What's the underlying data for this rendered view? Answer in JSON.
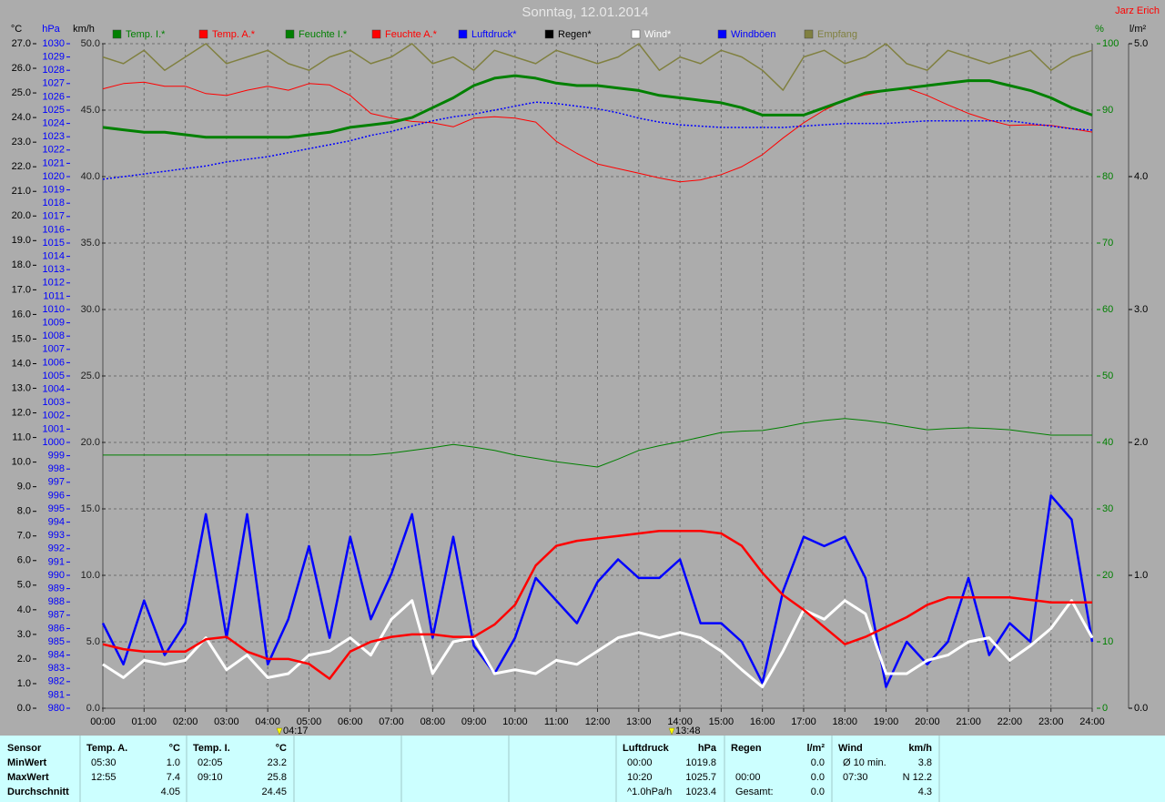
{
  "chart_data": {
    "type": "line",
    "title": "Sonntag, 12.01.2014",
    "author": "Jarz Erich",
    "axis_units": {
      "y": "°C",
      "y2": "hPa",
      "y3": "km/h",
      "y4": "%",
      "y5": "l/m²"
    },
    "xlim": [
      0,
      24
    ],
    "xticks": [
      {
        "value": 0,
        "label": "00:00"
      },
      {
        "value": 1,
        "label": "01:00"
      },
      {
        "value": 2,
        "label": "02:00"
      },
      {
        "value": 3,
        "label": "03:00"
      },
      {
        "value": 4,
        "label": "04:00"
      },
      {
        "value": 5,
        "label": "05:00"
      },
      {
        "value": 6,
        "label": "06:00"
      },
      {
        "value": 7,
        "label": "07:00"
      },
      {
        "value": 8,
        "label": "08:00"
      },
      {
        "value": 9,
        "label": "09:00"
      },
      {
        "value": 10,
        "label": "10:00"
      },
      {
        "value": 11,
        "label": "11:00"
      },
      {
        "value": 12,
        "label": "12:00"
      },
      {
        "value": 13,
        "label": "13:00"
      },
      {
        "value": 14,
        "label": "14:00"
      },
      {
        "value": 15,
        "label": "15:00"
      },
      {
        "value": 16,
        "label": "16:00"
      },
      {
        "value": 17,
        "label": "17:00"
      },
      {
        "value": 18,
        "label": "18:00"
      },
      {
        "value": 19,
        "label": "19:00"
      },
      {
        "value": 20,
        "label": "20:00"
      },
      {
        "value": 21,
        "label": "21:00"
      },
      {
        "value": 22,
        "label": "22:00"
      },
      {
        "value": 23,
        "label": "23:00"
      },
      {
        "value": 24,
        "label": "24:00"
      }
    ],
    "ylim": [
      0,
      27
    ],
    "yticks": [
      {
        "value": 0,
        "label": "0.0"
      },
      {
        "value": 1,
        "label": "1.0"
      },
      {
        "value": 2,
        "label": "2.0"
      },
      {
        "value": 3,
        "label": "3.0"
      },
      {
        "value": 4,
        "label": "4.0"
      },
      {
        "value": 5,
        "label": "5.0"
      },
      {
        "value": 6,
        "label": "6.0"
      },
      {
        "value": 7,
        "label": "7.0"
      },
      {
        "value": 8,
        "label": "8.0"
      },
      {
        "value": 9,
        "label": "9.0"
      },
      {
        "value": 10,
        "label": "10.0"
      },
      {
        "value": 11,
        "label": "11.0"
      },
      {
        "value": 12,
        "label": "12.0"
      },
      {
        "value": 13,
        "label": "13.0"
      },
      {
        "value": 14,
        "label": "14.0"
      },
      {
        "value": 15,
        "label": "15.0"
      },
      {
        "value": 16,
        "label": "16.0"
      },
      {
        "value": 17,
        "label": "17.0"
      },
      {
        "value": 18,
        "label": "18.0"
      },
      {
        "value": 19,
        "label": "19.0"
      },
      {
        "value": 20,
        "label": "20.0"
      },
      {
        "value": 21,
        "label": "21.0"
      },
      {
        "value": 22,
        "label": "22.0"
      },
      {
        "value": 23,
        "label": "23.0"
      },
      {
        "value": 24,
        "label": "24.0"
      },
      {
        "value": 25,
        "label": "25.0"
      },
      {
        "value": 26,
        "label": "26.0"
      },
      {
        "value": 27,
        "label": "27.0"
      }
    ],
    "y2lim": [
      980,
      1030
    ],
    "y2ticks": [
      980,
      981,
      982,
      983,
      984,
      985,
      986,
      987,
      988,
      989,
      990,
      991,
      992,
      993,
      994,
      995,
      996,
      997,
      998,
      999,
      1000,
      1001,
      1002,
      1003,
      1004,
      1005,
      1006,
      1007,
      1008,
      1009,
      1010,
      1011,
      1012,
      1013,
      1014,
      1015,
      1016,
      1017,
      1018,
      1019,
      1020,
      1021,
      1022,
      1023,
      1024,
      1025,
      1026,
      1027,
      1028,
      1029,
      1030
    ],
    "y3lim": [
      0,
      50
    ],
    "y3ticks": [
      {
        "value": 0,
        "label": "0.0"
      },
      {
        "value": 5,
        "label": "5.0"
      },
      {
        "value": 10,
        "label": "10.0"
      },
      {
        "value": 15,
        "label": "15.0"
      },
      {
        "value": 20,
        "label": "20.0"
      },
      {
        "value": 25,
        "label": "25.0"
      },
      {
        "value": 30,
        "label": "30.0"
      },
      {
        "value": 35,
        "label": "35.0"
      },
      {
        "value": 40,
        "label": "40.0"
      },
      {
        "value": 45,
        "label": "45.0"
      },
      {
        "value": 50,
        "label": "50.0"
      }
    ],
    "y4lim": [
      0,
      100
    ],
    "y4ticks": [
      0,
      10,
      20,
      30,
      40,
      50,
      60,
      70,
      80,
      90,
      100
    ],
    "y5lim": [
      0,
      5
    ],
    "y5ticks": [
      {
        "value": 0,
        "label": "0.0"
      },
      {
        "value": 1,
        "label": "1.0"
      },
      {
        "value": 2,
        "label": "2.0"
      },
      {
        "value": 3,
        "label": "3.0"
      },
      {
        "value": 4,
        "label": "4.0"
      },
      {
        "value": 5,
        "label": "5.0"
      }
    ],
    "grid": true,
    "x": [
      0,
      0.5,
      1,
      1.5,
      2,
      2.5,
      3,
      3.5,
      4,
      4.5,
      5,
      5.5,
      6,
      6.5,
      7,
      7.5,
      8,
      8.5,
      9,
      9.5,
      10,
      10.5,
      11,
      11.5,
      12,
      12.5,
      13,
      13.5,
      14,
      14.5,
      15,
      15.5,
      16,
      16.5,
      17,
      17.5,
      18,
      18.5,
      19,
      19.5,
      20,
      20.5,
      21,
      21.5,
      22,
      22.5,
      23,
      23.5,
      24
    ],
    "series": [
      {
        "name": "Temp. I.*",
        "color": "#008000",
        "axis": "y",
        "values": [
          23.6,
          23.5,
          23.4,
          23.4,
          23.3,
          23.2,
          23.2,
          23.2,
          23.2,
          23.2,
          23.3,
          23.4,
          23.6,
          23.7,
          23.8,
          24.0,
          24.4,
          24.8,
          25.3,
          25.6,
          25.7,
          25.6,
          25.4,
          25.3,
          25.3,
          25.2,
          25.1,
          24.9,
          24.8,
          24.7,
          24.6,
          24.4,
          24.1,
          24.1,
          24.1,
          24.4,
          24.7,
          25.0,
          25.1,
          25.2,
          25.3,
          25.4,
          25.5,
          25.5,
          25.3,
          25.1,
          24.8,
          24.4,
          24.1
        ]
      },
      {
        "name": "Temp. A.*",
        "color": "#ff0000",
        "axis": "y",
        "values": [
          2.6,
          2.4,
          2.3,
          2.3,
          2.3,
          2.8,
          2.9,
          2.3,
          2.0,
          2.0,
          1.8,
          1.2,
          2.3,
          2.7,
          2.9,
          3.0,
          3.0,
          2.9,
          2.9,
          3.4,
          4.2,
          5.8,
          6.6,
          6.8,
          6.9,
          7.0,
          7.1,
          7.2,
          7.2,
          7.2,
          7.1,
          6.6,
          5.5,
          4.6,
          4.0,
          3.3,
          2.6,
          2.9,
          3.3,
          3.7,
          4.2,
          4.5,
          4.5,
          4.5,
          4.5,
          4.4,
          4.3,
          4.3,
          4.3
        ]
      },
      {
        "name": "Feuchte I.*",
        "color": "#008000",
        "axis": "y4",
        "values": [
          38.1,
          38.1,
          38.1,
          38.1,
          38.1,
          38.1,
          38.1,
          38.1,
          38.1,
          38.1,
          38.1,
          38.1,
          38.1,
          38.1,
          38.4,
          38.8,
          39.2,
          39.7,
          39.3,
          38.8,
          38.1,
          37.6,
          37.1,
          36.7,
          36.3,
          37.5,
          38.8,
          39.5,
          40.1,
          40.8,
          41.5,
          41.7,
          41.8,
          42.3,
          42.9,
          43.3,
          43.6,
          43.3,
          42.9,
          42.4,
          41.9,
          42.1,
          42.2,
          42.1,
          41.9,
          41.5,
          41.1,
          41.1,
          41.1
        ]
      },
      {
        "name": "Feuchte A.*",
        "color": "#ff0000",
        "axis": "y4",
        "values": [
          93.2,
          94.0,
          94.2,
          93.6,
          93.6,
          92.5,
          92.2,
          93.0,
          93.6,
          93.0,
          94.0,
          93.8,
          92.2,
          89.5,
          88.8,
          88.3,
          88.1,
          87.5,
          88.8,
          89.0,
          88.8,
          88.2,
          85.3,
          83.5,
          81.9,
          81.2,
          80.5,
          79.8,
          79.2,
          79.5,
          80.3,
          81.5,
          83.3,
          85.8,
          88.1,
          90.0,
          91.5,
          92.3,
          92.9,
          93.3,
          92.2,
          90.8,
          89.5,
          88.5,
          87.7,
          87.8,
          87.7,
          87.2,
          86.7
        ]
      },
      {
        "name": "Luftdruck*",
        "color": "#0000ff",
        "axis": "y2",
        "values": [
          1019.8,
          1020.0,
          1020.2,
          1020.4,
          1020.6,
          1020.8,
          1021.1,
          1021.3,
          1021.5,
          1021.8,
          1022.1,
          1022.4,
          1022.7,
          1023.1,
          1023.4,
          1023.8,
          1024.2,
          1024.5,
          1024.7,
          1025.0,
          1025.3,
          1025.6,
          1025.5,
          1025.3,
          1025.1,
          1024.8,
          1024.4,
          1024.1,
          1023.9,
          1023.8,
          1023.7,
          1023.7,
          1023.7,
          1023.7,
          1023.8,
          1023.9,
          1024.0,
          1024.0,
          1024.0,
          1024.1,
          1024.2,
          1024.2,
          1024.2,
          1024.2,
          1024.2,
          1024.0,
          1023.8,
          1023.6,
          1023.5
        ]
      },
      {
        "name": "Regen*",
        "color": "#000000",
        "axis": "y5"
      },
      {
        "name": "Wind*",
        "color": "#ffffff",
        "axis": "y3",
        "values": [
          3.3,
          2.3,
          3.6,
          3.3,
          3.6,
          5.3,
          2.9,
          4.0,
          2.3,
          2.6,
          4.0,
          4.3,
          5.3,
          4.0,
          6.7,
          8.1,
          2.6,
          5.0,
          5.3,
          2.6,
          2.9,
          2.6,
          3.6,
          3.3,
          4.3,
          5.3,
          5.7,
          5.3,
          5.7,
          5.3,
          4.3,
          2.9,
          1.6,
          4.3,
          7.4,
          6.7,
          8.1,
          7.1,
          2.6,
          2.6,
          3.6,
          4.0,
          5.0,
          5.3,
          3.6,
          4.7,
          6.0,
          8.1,
          5.3
        ]
      },
      {
        "name": "Windböen",
        "color": "#0000ff",
        "axis": "y3",
        "values": [
          6.4,
          3.3,
          8.1,
          4.0,
          6.4,
          14.6,
          5.3,
          14.6,
          3.3,
          6.7,
          12.2,
          5.3,
          12.9,
          6.7,
          10.1,
          14.6,
          5.3,
          12.9,
          4.7,
          2.6,
          5.3,
          9.8,
          8.1,
          6.4,
          9.5,
          11.2,
          9.8,
          9.8,
          11.2,
          6.4,
          6.4,
          5.0,
          1.9,
          8.8,
          12.9,
          12.2,
          12.9,
          9.8,
          1.6,
          5.0,
          3.3,
          5.0,
          9.8,
          4.0,
          6.4,
          5.0,
          16.0,
          14.2,
          5.0
        ]
      },
      {
        "name": "Empfang",
        "color": "#808040",
        "axis": "y4",
        "values": [
          98,
          97,
          99,
          96,
          98,
          100,
          97,
          98,
          99,
          97,
          96,
          98,
          99,
          97,
          98,
          100,
          97,
          98,
          96,
          99,
          98,
          97,
          99,
          98,
          97,
          98,
          100,
          96,
          98,
          97,
          99,
          98,
          96,
          93,
          98,
          99,
          97,
          98,
          100,
          97,
          96,
          99,
          98,
          97,
          98,
          99,
          96,
          98,
          99
        ]
      }
    ],
    "annotations": [
      {
        "x": 4.283,
        "label": "04:17"
      },
      {
        "x": 13.8,
        "label": "13:48"
      }
    ]
  },
  "summary": {
    "sensor": [
      "Sensor",
      "MinWert",
      "MaxWert",
      "Durchschnitt"
    ],
    "blocks": [
      {
        "title": "Temp. A.",
        "unit": "°C",
        "rows": [
          [
            "05:30",
            "1.0"
          ],
          [
            "12:55",
            "7.4"
          ],
          [
            null,
            "4.05"
          ]
        ]
      },
      {
        "title": "Temp. I.",
        "unit": "°C",
        "rows": [
          [
            "02:05",
            "23.2"
          ],
          [
            "09:10",
            "25.8"
          ],
          [
            null,
            "24.45"
          ]
        ]
      },
      {
        "title": "Luftdruck",
        "unit": "hPa",
        "rows": [
          [
            "00:00",
            "1019.8"
          ],
          [
            "10:20",
            "1025.7"
          ],
          [
            "^1.0hPa/h",
            "1023.4"
          ]
        ]
      },
      {
        "title": "Regen",
        "unit": "l/m²",
        "rows": [
          [
            null,
            "0.0"
          ],
          [
            "00:00",
            "0.0"
          ],
          [
            "Gesamt:",
            "0.0"
          ]
        ]
      },
      {
        "title": "Wind",
        "unit": "km/h",
        "rows": [
          [
            "Ø 10 min.",
            "3.8"
          ],
          [
            "07:30",
            "N 12.2"
          ],
          [
            null,
            "4.3"
          ]
        ]
      }
    ]
  }
}
